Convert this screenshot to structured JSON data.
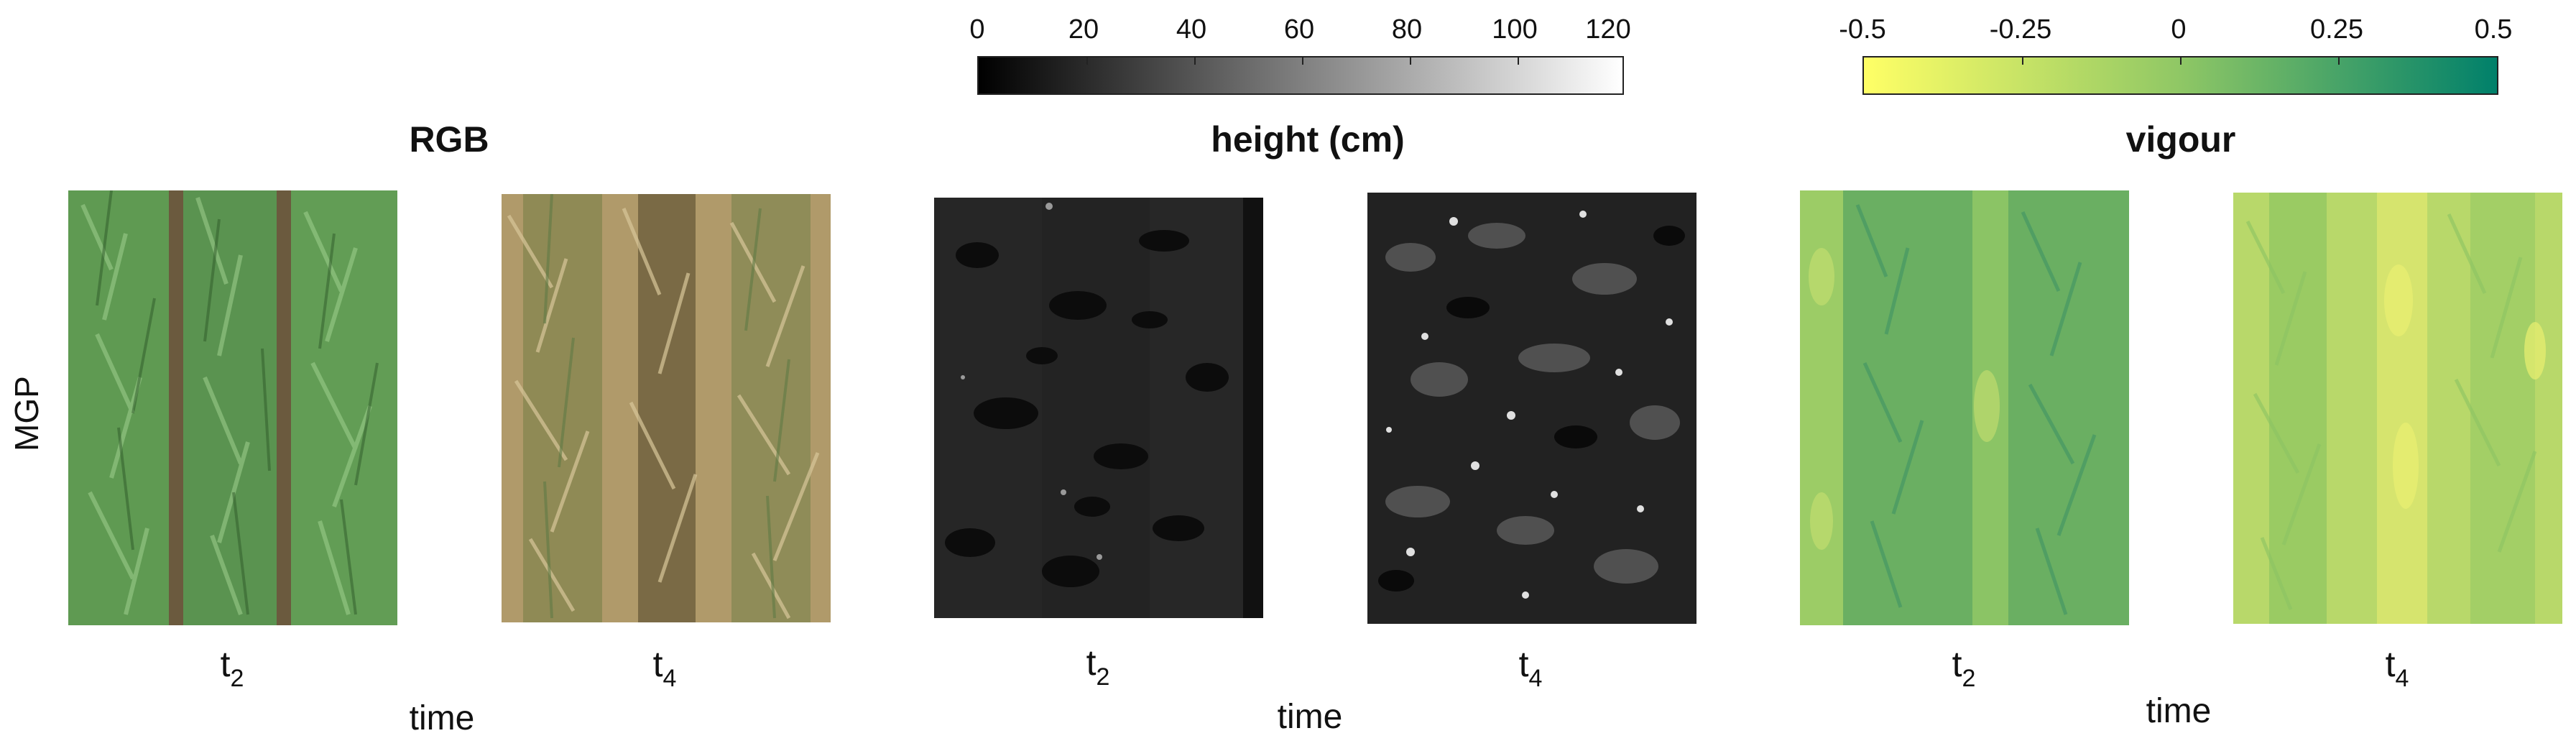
{
  "row_label": "MGP",
  "groups": [
    {
      "title": "RGB",
      "time_label": "time",
      "panels": [
        {
          "t_base": "t",
          "t_sub": "2"
        },
        {
          "t_base": "t",
          "t_sub": "4"
        }
      ]
    },
    {
      "title": "height (cm)",
      "time_label": "time",
      "panels": [
        {
          "t_base": "t",
          "t_sub": "2"
        },
        {
          "t_base": "t",
          "t_sub": "4"
        }
      ]
    },
    {
      "title": "vigour",
      "time_label": "time",
      "panels": [
        {
          "t_base": "t",
          "t_sub": "2"
        },
        {
          "t_base": "t",
          "t_sub": "4"
        }
      ]
    }
  ],
  "colorbars": {
    "height": {
      "ticks": [
        "0",
        "20",
        "40",
        "60",
        "80",
        "100",
        "120"
      ],
      "min": 0,
      "max": 120,
      "color_low": "#000000",
      "color_high": "#ffffff"
    },
    "vigour": {
      "ticks": [
        "-0.5",
        "-0.25",
        "0",
        "0.25",
        "0.5"
      ],
      "min": -0.5,
      "max": 0.5,
      "color_low": "#ffff66",
      "color_mid": "#8fc765",
      "color_high": "#00806a"
    }
  },
  "colors": {
    "rgb_green": "#5f9a52",
    "rgb_dry": "#b09a6a",
    "height_bg": "#232323",
    "vigour_t2": "#6aaf62",
    "vigour_t4": "#b8d86a"
  }
}
